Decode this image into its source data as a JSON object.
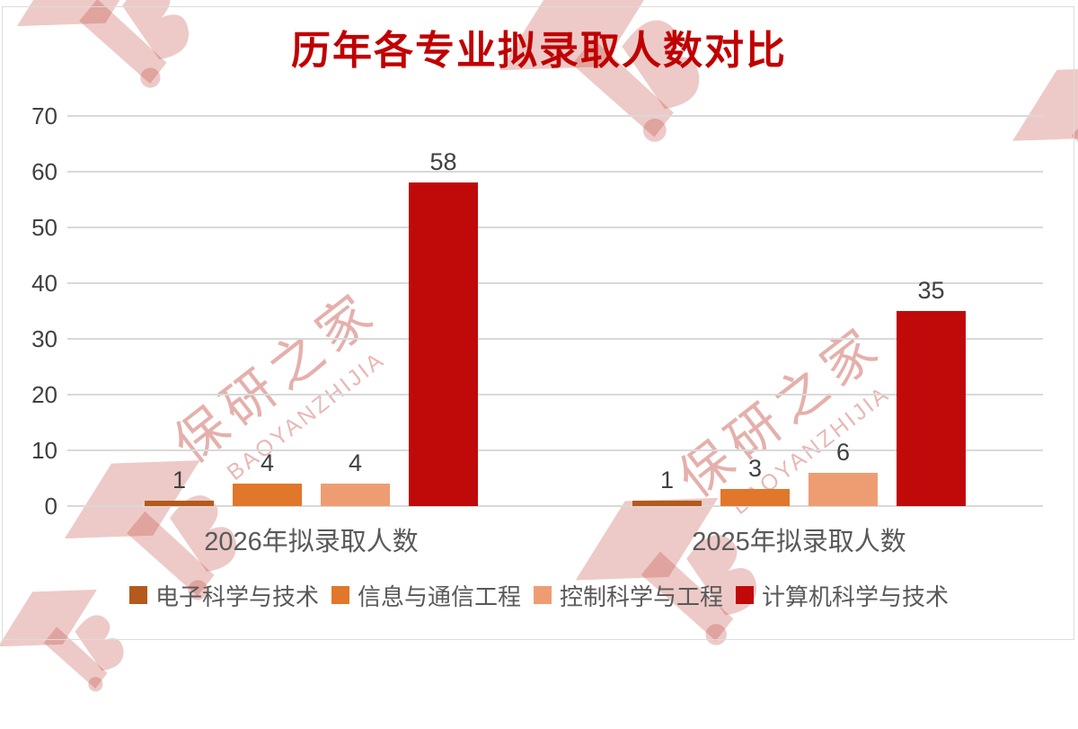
{
  "title": "历年各专业拟录取人数对比",
  "title_color": "#C00000",
  "watermark": {
    "cn": "保研之家",
    "en": "BAOYANZHIJIA"
  },
  "chart_data": {
    "type": "bar",
    "title": "历年各专业拟录取人数对比",
    "categories": [
      "2026年拟录取人数",
      "2025年拟录取人数"
    ],
    "series": [
      {
        "name": "电子科学与技术",
        "color": "#B5591C",
        "values": [
          1,
          1
        ]
      },
      {
        "name": "信息与通信工程",
        "color": "#E0772B",
        "values": [
          4,
          3
        ]
      },
      {
        "name": "控制科学与工程",
        "color": "#EE9D72",
        "values": [
          4,
          6
        ]
      },
      {
        "name": "计算机科学与技术",
        "color": "#C00A0A",
        "values": [
          58,
          35
        ]
      }
    ],
    "xlabel": "",
    "ylabel": "",
    "ylim": [
      0,
      70
    ],
    "yticks": [
      0,
      10,
      20,
      30,
      40,
      50,
      60,
      70
    ],
    "grid": true,
    "gridline_color": "#D9D9D9",
    "value_labels": true,
    "legend_position": "bottom"
  }
}
